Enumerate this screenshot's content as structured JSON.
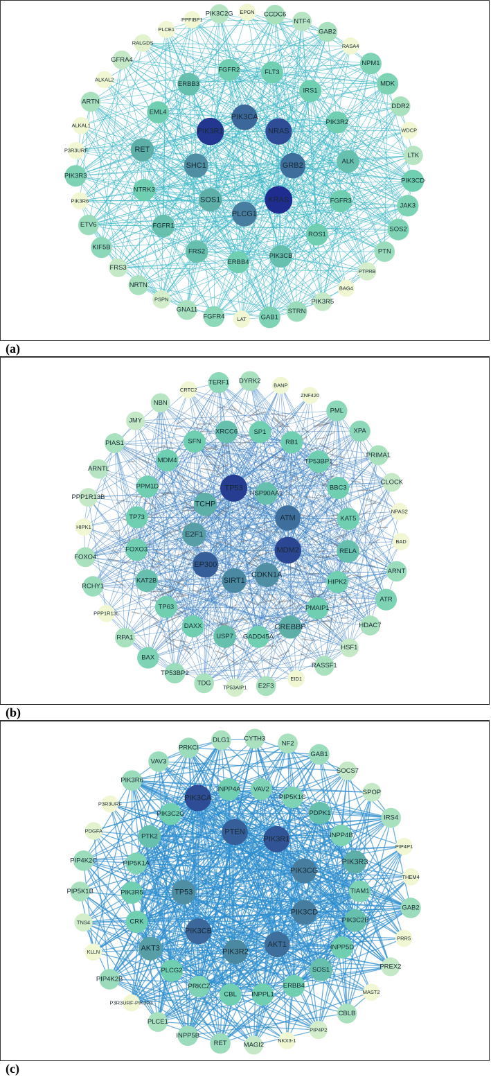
{
  "figure": {
    "colors": {
      "edge_a": "#3fb8c8",
      "edge_b": "#3d82c4",
      "edge_c": "#2f8fcf",
      "scale_low": "#fffbd6",
      "scale_mid": "#6fcfb0",
      "scale_high": "#1e2d8f"
    },
    "panels": [
      {
        "label": "(a)",
        "nodes": [
          {
            "name": "PIK3C2G",
            "deg": 0.25
          },
          {
            "name": "EPGN",
            "deg": 0.05
          },
          {
            "name": "CCDC6",
            "deg": 0.3
          },
          {
            "name": "NTF4",
            "deg": 0.25
          },
          {
            "name": "GAB2",
            "deg": 0.3
          },
          {
            "name": "RASA4",
            "deg": 0.05
          },
          {
            "name": "NPM1",
            "deg": 0.45
          },
          {
            "name": "MDK",
            "deg": 0.45
          },
          {
            "name": "DDR2",
            "deg": 0.3
          },
          {
            "name": "WDCP",
            "deg": 0.05
          },
          {
            "name": "LTK",
            "deg": 0.25
          },
          {
            "name": "PIK3CD",
            "deg": 0.5
          },
          {
            "name": "JAK3",
            "deg": 0.45
          },
          {
            "name": "SOS2",
            "deg": 0.45
          },
          {
            "name": "PTN",
            "deg": 0.35
          },
          {
            "name": "PTPRB",
            "deg": 0.15
          },
          {
            "name": "BAG4",
            "deg": 0.05
          },
          {
            "name": "PIK3R5",
            "deg": 0.2
          },
          {
            "name": "STRN",
            "deg": 0.35
          },
          {
            "name": "GAB1",
            "deg": 0.45
          },
          {
            "name": "LAT",
            "deg": 0.05
          },
          {
            "name": "FGFR4",
            "deg": 0.4
          },
          {
            "name": "GNA11",
            "deg": 0.3
          },
          {
            "name": "PSPN",
            "deg": 0.15
          },
          {
            "name": "NRTN",
            "deg": 0.3
          },
          {
            "name": "FRS3",
            "deg": 0.2
          },
          {
            "name": "KIF5B",
            "deg": 0.4
          },
          {
            "name": "ETV6",
            "deg": 0.35
          },
          {
            "name": "PIK3R6",
            "deg": 0.05
          },
          {
            "name": "PIK3R3",
            "deg": 0.45
          },
          {
            "name": "P3R3URF",
            "deg": 0.05
          },
          {
            "name": "ALKAL1",
            "deg": 0.05
          },
          {
            "name": "ARTN",
            "deg": 0.3
          },
          {
            "name": "ALKAL2",
            "deg": 0.05
          },
          {
            "name": "GFRA4",
            "deg": 0.2
          },
          {
            "name": "RALGDS",
            "deg": 0.1
          },
          {
            "name": "PLCE1",
            "deg": 0.05
          },
          {
            "name": "PPFIBP1",
            "deg": 0.05
          },
          {
            "name": "FGFR2",
            "deg": 0.5
          },
          {
            "name": "FLT3",
            "deg": 0.5
          },
          {
            "name": "IRS1",
            "deg": 0.5
          },
          {
            "name": "PIK3R2",
            "deg": 0.5
          },
          {
            "name": "ALK",
            "deg": 0.55
          },
          {
            "name": "FGFR3",
            "deg": 0.5
          },
          {
            "name": "ROS1",
            "deg": 0.5
          },
          {
            "name": "PIK3CB",
            "deg": 0.55
          },
          {
            "name": "ERBB4",
            "deg": 0.5
          },
          {
            "name": "FRS2",
            "deg": 0.55
          },
          {
            "name": "FGFR1",
            "deg": 0.55
          },
          {
            "name": "NTRK3",
            "deg": 0.5
          },
          {
            "name": "RET",
            "deg": 0.6
          },
          {
            "name": "EML4",
            "deg": 0.5
          },
          {
            "name": "ERBB3",
            "deg": 0.55
          },
          {
            "name": "PIK3CA",
            "deg": 0.82
          },
          {
            "name": "NRAS",
            "deg": 0.9
          },
          {
            "name": "GRB2",
            "deg": 0.8
          },
          {
            "name": "KRAS",
            "deg": 1.0
          },
          {
            "name": "PLCG1",
            "deg": 0.75
          },
          {
            "name": "SOS1",
            "deg": 0.6
          },
          {
            "name": "SHC1",
            "deg": 0.7
          },
          {
            "name": "PIK3R1",
            "deg": 0.97
          }
        ]
      },
      {
        "label": "(b)",
        "nodes": [
          {
            "name": "TERF1",
            "deg": 0.4
          },
          {
            "name": "DYRK2",
            "deg": 0.3
          },
          {
            "name": "BANP",
            "deg": 0.05
          },
          {
            "name": "ZNF420",
            "deg": 0.05
          },
          {
            "name": "PML",
            "deg": 0.4
          },
          {
            "name": "XPA",
            "deg": 0.4
          },
          {
            "name": "PRIMA1",
            "deg": 0.3
          },
          {
            "name": "CLOCK",
            "deg": 0.2
          },
          {
            "name": "NPAS2",
            "deg": 0.05
          },
          {
            "name": "BAD",
            "deg": 0.05
          },
          {
            "name": "ARNT",
            "deg": 0.35
          },
          {
            "name": "ATR",
            "deg": 0.45
          },
          {
            "name": "HDAC7",
            "deg": 0.3
          },
          {
            "name": "HSF1",
            "deg": 0.2
          },
          {
            "name": "RASSF1",
            "deg": 0.3
          },
          {
            "name": "EID1",
            "deg": 0.05
          },
          {
            "name": "E2F3",
            "deg": 0.3
          },
          {
            "name": "TP53AIP1",
            "deg": 0.15
          },
          {
            "name": "TDG",
            "deg": 0.3
          },
          {
            "name": "TP53BP2",
            "deg": 0.35
          },
          {
            "name": "BAX",
            "deg": 0.45
          },
          {
            "name": "RPA1",
            "deg": 0.3
          },
          {
            "name": "PPP1R13L",
            "deg": 0.05
          },
          {
            "name": "RCHY1",
            "deg": 0.35
          },
          {
            "name": "FOXO4",
            "deg": 0.3
          },
          {
            "name": "HIPK1",
            "deg": 0.05
          },
          {
            "name": "PPP1R13B",
            "deg": 0.2
          },
          {
            "name": "ARNTL",
            "deg": 0.25
          },
          {
            "name": "PIAS1",
            "deg": 0.3
          },
          {
            "name": "JMY",
            "deg": 0.2
          },
          {
            "name": "NBN",
            "deg": 0.25
          },
          {
            "name": "CRTC2",
            "deg": 0.05
          },
          {
            "name": "XRCC6",
            "deg": 0.55
          },
          {
            "name": "SP1",
            "deg": 0.5
          },
          {
            "name": "RB1",
            "deg": 0.5
          },
          {
            "name": "TP53BP1",
            "deg": 0.5
          },
          {
            "name": "BBC3",
            "deg": 0.5
          },
          {
            "name": "KAT5",
            "deg": 0.5
          },
          {
            "name": "RELA",
            "deg": 0.55
          },
          {
            "name": "HIPK2",
            "deg": 0.5
          },
          {
            "name": "PMAIP1",
            "deg": 0.5
          },
          {
            "name": "CREBBP",
            "deg": 0.6
          },
          {
            "name": "GADD45A",
            "deg": 0.5
          },
          {
            "name": "USP7",
            "deg": 0.55
          },
          {
            "name": "DAXX",
            "deg": 0.5
          },
          {
            "name": "TP63",
            "deg": 0.5
          },
          {
            "name": "KAT2B",
            "deg": 0.55
          },
          {
            "name": "FOXO3",
            "deg": 0.5
          },
          {
            "name": "TP73",
            "deg": 0.5
          },
          {
            "name": "PPM1D",
            "deg": 0.5
          },
          {
            "name": "MDM4",
            "deg": 0.5
          },
          {
            "name": "SFN",
            "deg": 0.5
          },
          {
            "name": "TP53",
            "deg": 0.95
          },
          {
            "name": "HSP90AA1",
            "deg": 0.55
          },
          {
            "name": "ATM",
            "deg": 0.8
          },
          {
            "name": "MDM2",
            "deg": 0.92
          },
          {
            "name": "CDKN1A",
            "deg": 0.7
          },
          {
            "name": "SIRT1",
            "deg": 0.72
          },
          {
            "name": "EP300",
            "deg": 0.85
          },
          {
            "name": "E2F1",
            "deg": 0.65
          },
          {
            "name": "TCHP",
            "deg": 0.6
          }
        ]
      },
      {
        "label": "(c)",
        "nodes": [
          {
            "name": "DLG1",
            "deg": 0.3
          },
          {
            "name": "CYTH3",
            "deg": 0.3
          },
          {
            "name": "NF2",
            "deg": 0.3
          },
          {
            "name": "GAB1",
            "deg": 0.35
          },
          {
            "name": "SOCS7",
            "deg": 0.2
          },
          {
            "name": "SPOP",
            "deg": 0.2
          },
          {
            "name": "IRS4",
            "deg": 0.3
          },
          {
            "name": "PIP4P1",
            "deg": 0.05
          },
          {
            "name": "THEM4",
            "deg": 0.05
          },
          {
            "name": "GAB2",
            "deg": 0.35
          },
          {
            "name": "PRR5",
            "deg": 0.05
          },
          {
            "name": "PREX2",
            "deg": 0.2
          },
          {
            "name": "MAST2",
            "deg": 0.05
          },
          {
            "name": "CBLB",
            "deg": 0.3
          },
          {
            "name": "PIP4P2",
            "deg": 0.15
          },
          {
            "name": "NKX3-1",
            "deg": 0.05
          },
          {
            "name": "MAGI2",
            "deg": 0.2
          },
          {
            "name": "RET",
            "deg": 0.35
          },
          {
            "name": "INPP5B",
            "deg": 0.35
          },
          {
            "name": "PLCE1",
            "deg": 0.3
          },
          {
            "name": "P3R3URF-PIK3R3",
            "deg": 0.05
          },
          {
            "name": "PIP4K2B",
            "deg": 0.35
          },
          {
            "name": "KLLN",
            "deg": 0.05
          },
          {
            "name": "TNS4",
            "deg": 0.15
          },
          {
            "name": "PIP5K1B",
            "deg": 0.3
          },
          {
            "name": "PIP4K2C",
            "deg": 0.35
          },
          {
            "name": "PDGFA",
            "deg": 0.1
          },
          {
            "name": "P3R3URF",
            "deg": 0.05
          },
          {
            "name": "PIK3R6",
            "deg": 0.35
          },
          {
            "name": "VAV3",
            "deg": 0.35
          },
          {
            "name": "PRKCI",
            "deg": 0.35
          },
          {
            "name": "INPP4A",
            "deg": 0.5
          },
          {
            "name": "VAV2",
            "deg": 0.45
          },
          {
            "name": "PIP5K1C",
            "deg": 0.45
          },
          {
            "name": "PDPK1",
            "deg": 0.55
          },
          {
            "name": "INPP4B",
            "deg": 0.45
          },
          {
            "name": "PIK3R3",
            "deg": 0.6
          },
          {
            "name": "TIAM1",
            "deg": 0.45
          },
          {
            "name": "PIK3C2B",
            "deg": 0.55
          },
          {
            "name": "INPP5D",
            "deg": 0.5
          },
          {
            "name": "SOS1",
            "deg": 0.55
          },
          {
            "name": "ERBB4",
            "deg": 0.5
          },
          {
            "name": "INPPL1",
            "deg": 0.5
          },
          {
            "name": "CBL",
            "deg": 0.5
          },
          {
            "name": "PRKCZ",
            "deg": 0.45
          },
          {
            "name": "PLCG2",
            "deg": 0.5
          },
          {
            "name": "AKT3",
            "deg": 0.65
          },
          {
            "name": "CRK",
            "deg": 0.5
          },
          {
            "name": "PIK3R5",
            "deg": 0.5
          },
          {
            "name": "PIP5K1A",
            "deg": 0.45
          },
          {
            "name": "PTK2",
            "deg": 0.55
          },
          {
            "name": "PIK3C2G",
            "deg": 0.5
          },
          {
            "name": "PIK3CA",
            "deg": 0.9
          },
          {
            "name": "PTEN",
            "deg": 0.85
          },
          {
            "name": "PIK3R1",
            "deg": 0.88
          },
          {
            "name": "PIK3CG",
            "deg": 0.75
          },
          {
            "name": "PIK3CD",
            "deg": 0.75
          },
          {
            "name": "AKT1",
            "deg": 0.8
          },
          {
            "name": "PIK3R2",
            "deg": 0.72
          },
          {
            "name": "PIK3CB",
            "deg": 0.82
          },
          {
            "name": "TP53",
            "deg": 0.7
          }
        ]
      }
    ]
  }
}
